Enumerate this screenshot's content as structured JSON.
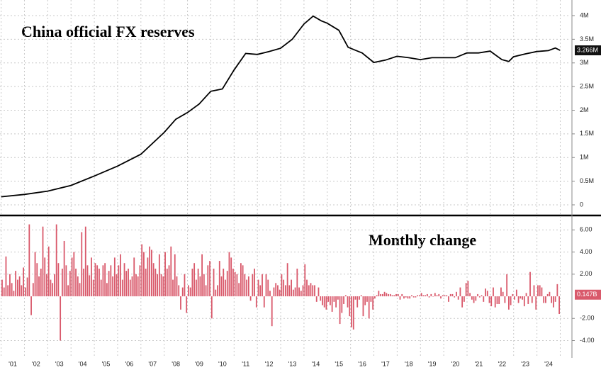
{
  "chart_data": [
    {
      "type": "line",
      "title": "China official FX reserves",
      "color": "#000000",
      "x": [
        2001.0,
        2002.0,
        2003.0,
        2004.0,
        2005.0,
        2006.0,
        2007.0,
        2008.0,
        2008.5,
        2009.0,
        2009.5,
        2010.0,
        2010.5,
        2011.0,
        2011.5,
        2012.0,
        2012.5,
        2013.0,
        2013.5,
        2014.0,
        2014.4,
        2014.75,
        2015.0,
        2015.5,
        2015.9,
        2016.5,
        2017.0,
        2017.5,
        2018.0,
        2018.5,
        2019.0,
        2019.5,
        2020.0,
        2020.5,
        2021.0,
        2021.5,
        2022.0,
        2022.5,
        2022.8,
        2023.0,
        2023.5,
        2024.0,
        2024.5,
        2024.8,
        2025.0
      ],
      "values": [
        0.17,
        0.22,
        0.29,
        0.41,
        0.61,
        0.82,
        1.07,
        1.53,
        1.81,
        1.95,
        2.13,
        2.4,
        2.45,
        2.85,
        3.2,
        3.18,
        3.24,
        3.31,
        3.5,
        3.82,
        3.99,
        3.89,
        3.84,
        3.69,
        3.33,
        3.21,
        3.01,
        3.06,
        3.14,
        3.11,
        3.07,
        3.11,
        3.11,
        3.11,
        3.21,
        3.21,
        3.25,
        3.07,
        3.03,
        3.13,
        3.19,
        3.24,
        3.26,
        3.316,
        3.266
      ],
      "last_value": {
        "value": 3.266,
        "label": "3.266M"
      },
      "xlim": [
        2000.95,
        2025.45
      ],
      "ylim": [
        -0.21,
        4.33
      ],
      "yticks": [
        0,
        {
          "value": 0.5,
          "label": "0.5M"
        },
        {
          "value": 1,
          "label": "1M"
        },
        {
          "value": 1.5,
          "label": "1.5M"
        },
        {
          "value": 2,
          "label": "2M"
        },
        {
          "value": 2.5,
          "label": "2.5M"
        },
        {
          "value": 3,
          "label": "3M"
        },
        {
          "value": 3.5,
          "label": "3.5M"
        },
        {
          "value": 4,
          "label": "4M"
        }
      ],
      "grid": true
    },
    {
      "type": "bar",
      "title": "Monthly change",
      "color": "#d9596b",
      "categories": [
        "'01",
        "'02",
        "'03",
        "'04",
        "'05",
        "'06",
        "'07",
        "'08",
        "'09",
        "'10",
        "'11",
        "'12",
        "'13",
        "'14",
        "'15",
        "'16",
        "'17",
        "'18",
        "'19",
        "'20",
        "'21",
        "'22",
        "'23",
        "'24"
      ],
      "values": [
        [
          1.5,
          0.8,
          3.6,
          1.0,
          2.0,
          1.2,
          0.5,
          2.3,
          1.5,
          1.8,
          1.0,
          2.6
        ],
        [
          0.8,
          1.7,
          6.5,
          -1.7,
          1.2,
          4.0,
          3.0,
          1.8,
          2.5,
          6.3,
          3.5,
          2.0
        ],
        [
          4.5,
          1.5,
          1.2,
          2.0,
          6.5,
          3.0,
          -4.0,
          2.5,
          5.0,
          2.8,
          1.0,
          2.3
        ],
        [
          3.5,
          4.0,
          2.5,
          1.8,
          1.2,
          5.8,
          2.5,
          6.3,
          2.8,
          1.9,
          3.5,
          1.5
        ],
        [
          3.0,
          2.8,
          2.5,
          1.5,
          2.8,
          3.0,
          1.2,
          2.3,
          2.8,
          1.8,
          3.5,
          2.0
        ],
        [
          2.8,
          3.8,
          1.5,
          3.0,
          2.3,
          2.5,
          1.5,
          1.8,
          3.5,
          2.0,
          1.8,
          2.8
        ],
        [
          4.7,
          4.0,
          2.5,
          3.5,
          4.5,
          4.2,
          3.0,
          2.5,
          2.0,
          3.8,
          2.0,
          1.8
        ],
        [
          4.0,
          2.5,
          2.8,
          4.5,
          1.5,
          3.8,
          1.8,
          1.0,
          -1.2,
          0.8,
          2.0,
          -1.5
        ],
        [
          1.0,
          0.8,
          2.5,
          3.0,
          1.5,
          2.5,
          1.8,
          3.8,
          2.0,
          1.0,
          2.8,
          3.2
        ],
        [
          -2.0,
          2.5,
          0.6,
          1.0,
          3.2,
          1.8,
          2.5,
          1.5,
          2.3,
          4.0,
          3.5,
          2.5
        ],
        [
          2.2,
          2.0,
          1.2,
          3.0,
          2.8,
          2.0,
          1.5,
          1.8,
          -0.4,
          2.0,
          2.5,
          -1.0
        ],
        [
          1.5,
          1.0,
          2.0,
          -1.0,
          2.0,
          1.5,
          0.5,
          -2.7,
          0.8,
          1.2,
          1.0,
          0.6
        ],
        [
          2.0,
          1.5,
          1.0,
          3.0,
          1.0,
          1.5,
          0.6,
          0.8,
          2.5,
          0.8,
          0.5,
          1.0
        ],
        [
          2.9,
          1.5,
          1.0,
          1.2,
          1.0,
          1.0,
          -0.5,
          0.8,
          -0.4,
          -0.8,
          -1.0,
          -1.2
        ],
        [
          -0.5,
          -0.8,
          -1.4,
          -0.5,
          -1.0,
          -0.3,
          -2.5,
          -1.5,
          -0.7,
          0.1,
          -1.0,
          -1.8
        ],
        [
          -2.8,
          -3.0,
          -0.3,
          -1.0,
          -0.3,
          0.1,
          -1.8,
          -0.8,
          -0.5,
          -2.0,
          -0.5,
          -1.2
        ],
        [
          -0.2,
          0.1,
          0.5,
          0.2,
          0.2,
          0.4,
          0.3,
          0.2,
          0.2,
          0.1,
          0.1,
          0.2
        ],
        [
          0.2,
          -0.3,
          0.2,
          -0.2,
          -0.1,
          -0.2,
          -0.2,
          0.1,
          -0.1,
          -0.1,
          0.1,
          0.1
        ],
        [
          0.3,
          0.1,
          0.1,
          0.2,
          -0.1,
          0.2,
          0.0,
          0.3,
          0.1,
          0.2,
          -0.2,
          0.1
        ],
        [
          0.1,
          0.1,
          -0.5,
          0.2,
          0.2,
          -0.1,
          0.4,
          -0.3,
          0.8,
          -1.0,
          -0.5,
          1.2
        ],
        [
          1.4,
          0.3,
          -0.3,
          -0.6,
          -0.4,
          0.2,
          -0.1,
          0.1,
          -0.5,
          0.7,
          0.5,
          -0.6
        ],
        [
          -0.9,
          0.8,
          -1.0,
          -0.7,
          -0.7,
          0.8,
          0.4,
          -0.6,
          2.0,
          -1.2,
          -0.8,
          0.2
        ],
        [
          -0.3,
          0.6,
          -0.6,
          -0.2,
          -0.3,
          -0.9,
          0.3,
          -0.7,
          2.2,
          -0.6,
          1.0,
          -1.2
        ],
        [
          1.0,
          1.0,
          0.8,
          -0.6,
          -0.6,
          0.2,
          0.4,
          -0.6,
          -1.0,
          -0.5,
          1.1,
          -1.6
        ]
      ],
      "last_value": {
        "value": 0.147,
        "label": "0.147B"
      },
      "ylim": [
        -5.57,
        7.24
      ],
      "yticks": [
        {
          "value": -4,
          "label": "-4.00"
        },
        {
          "value": -2,
          "label": "-2.00"
        },
        {
          "value": 2,
          "label": "2.00"
        },
        {
          "value": 4,
          "label": "4.00"
        },
        {
          "value": 6,
          "label": "6.00"
        }
      ],
      "grid": true
    }
  ]
}
